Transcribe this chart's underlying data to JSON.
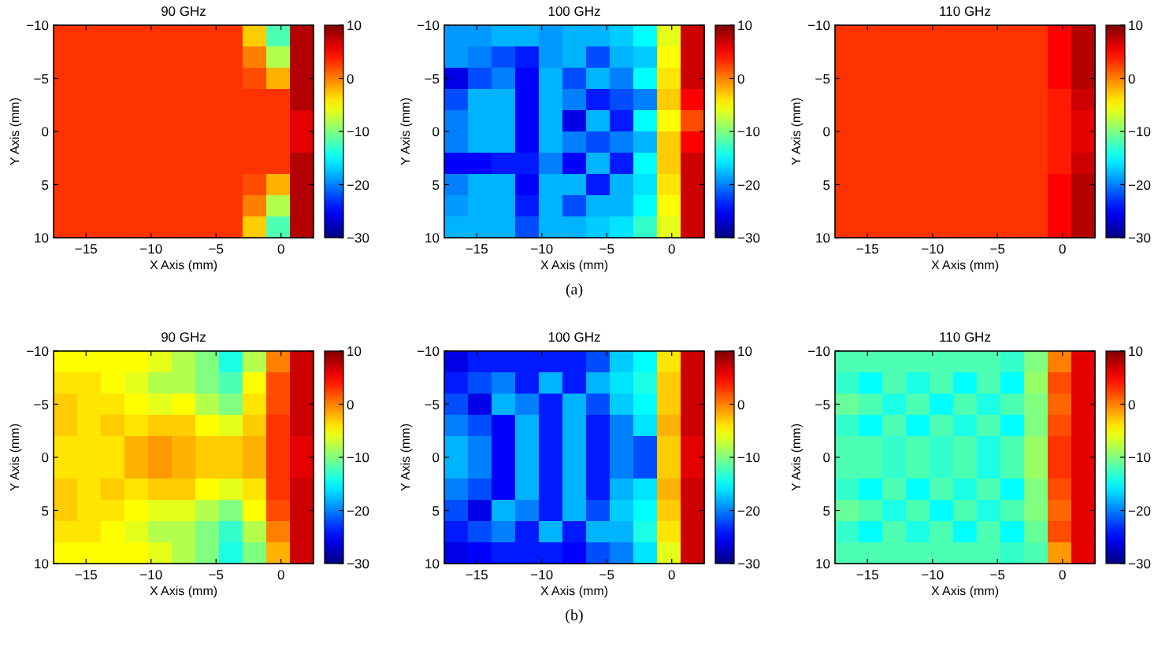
{
  "chart_data": [
    {
      "type": "heatmap",
      "title": "90 GHz",
      "xlabel": "X Axis (mm)",
      "ylabel": "Y Axis (mm)",
      "xlim": [
        -17.5,
        2.5
      ],
      "xticks": [
        -15,
        -10,
        -5,
        0
      ],
      "ylim": [
        10,
        -10
      ],
      "yticks": [
        -10,
        -5,
        0,
        5,
        10
      ],
      "clim": [
        -30,
        10
      ],
      "cticks": [
        -30,
        -20,
        -10,
        0,
        10
      ],
      "cells": [
        [
          3,
          3,
          3,
          3,
          3,
          3,
          3,
          3,
          -3,
          -12,
          8
        ],
        [
          3,
          3,
          3,
          3,
          3,
          3,
          3,
          3,
          0,
          -8,
          8
        ],
        [
          3,
          3,
          3,
          3,
          3,
          3,
          3,
          3,
          2,
          -2,
          8
        ],
        [
          3,
          3,
          3,
          3,
          3,
          3,
          3,
          3,
          3,
          3,
          8
        ],
        [
          3,
          3,
          3,
          3,
          3,
          3,
          3,
          3,
          3,
          3,
          6
        ],
        [
          3,
          3,
          3,
          3,
          3,
          3,
          3,
          3,
          3,
          3,
          6
        ],
        [
          3,
          3,
          3,
          3,
          3,
          3,
          3,
          3,
          3,
          3,
          8
        ],
        [
          3,
          3,
          3,
          3,
          3,
          3,
          3,
          3,
          2,
          -2,
          8
        ],
        [
          3,
          3,
          3,
          3,
          3,
          3,
          3,
          3,
          0,
          -8,
          8
        ],
        [
          3,
          3,
          3,
          3,
          3,
          3,
          3,
          3,
          -3,
          -12,
          8
        ]
      ]
    },
    {
      "type": "heatmap",
      "title": "100 GHz",
      "xlabel": "X Axis (mm)",
      "ylabel": "Y Axis (mm)",
      "xlim": [
        -17.5,
        2.5
      ],
      "xticks": [
        -15,
        -10,
        -5,
        0
      ],
      "ylim": [
        10,
        -10
      ],
      "yticks": [
        -10,
        -5,
        0,
        5,
        10
      ],
      "clim": [
        -30,
        10
      ],
      "cticks": [
        -30,
        -20,
        -10,
        0,
        10
      ],
      "annotations": [
        "(a)"
      ],
      "cells": [
        [
          -19,
          -19,
          -18,
          -18,
          -19,
          -18,
          -18,
          -17,
          -15,
          -6,
          7
        ],
        [
          -19,
          -20,
          -22,
          -24,
          -19,
          -18,
          -22,
          -18,
          -17,
          -5,
          7
        ],
        [
          -26,
          -22,
          -20,
          -25,
          -18,
          -22,
          -18,
          -20,
          -15,
          -4,
          7
        ],
        [
          -22,
          -18,
          -18,
          -25,
          -18,
          -20,
          -24,
          -22,
          -20,
          -3,
          5
        ],
        [
          -20,
          -18,
          -18,
          -25,
          -18,
          -26,
          -18,
          -24,
          -15,
          -5,
          2
        ],
        [
          -20,
          -18,
          -18,
          -25,
          -18,
          -20,
          -22,
          -20,
          -18,
          -3,
          5
        ],
        [
          -25,
          -25,
          -24,
          -24,
          -20,
          -25,
          -18,
          -24,
          -15,
          -3,
          7
        ],
        [
          -20,
          -18,
          -18,
          -25,
          -18,
          -18,
          -24,
          -18,
          -16,
          -4,
          7
        ],
        [
          -19,
          -18,
          -18,
          -24,
          -18,
          -22,
          -18,
          -18,
          -15,
          -5,
          7
        ],
        [
          -18,
          -18,
          -18,
          -22,
          -18,
          -18,
          -17,
          -16,
          -13,
          -6,
          7
        ]
      ]
    },
    {
      "type": "heatmap",
      "title": "110 GHz",
      "xlabel": "X Axis (mm)",
      "ylabel": "Y Axis (mm)",
      "xlim": [
        -17.5,
        2.5
      ],
      "xticks": [
        -15,
        -10,
        -5,
        0
      ],
      "ylim": [
        10,
        -10
      ],
      "yticks": [
        -10,
        -5,
        0,
        5,
        10
      ],
      "clim": [
        -30,
        10
      ],
      "cticks": [
        -30,
        -20,
        -10,
        0,
        10
      ],
      "cells": [
        [
          3,
          3,
          3,
          3,
          3,
          3,
          3,
          3,
          3,
          5,
          8
        ],
        [
          3,
          3,
          3,
          3,
          3,
          3,
          3,
          3,
          3,
          5,
          8
        ],
        [
          3,
          3,
          3,
          3,
          3,
          3,
          3,
          3,
          3,
          5,
          8
        ],
        [
          3,
          3,
          3,
          3,
          3,
          3,
          3,
          3,
          3,
          4,
          7
        ],
        [
          3,
          3,
          3,
          3,
          3,
          3,
          3,
          3,
          3,
          4,
          6
        ],
        [
          3,
          3,
          3,
          3,
          3,
          3,
          3,
          3,
          3,
          4,
          6
        ],
        [
          3,
          3,
          3,
          3,
          3,
          3,
          3,
          3,
          3,
          4,
          7
        ],
        [
          3,
          3,
          3,
          3,
          3,
          3,
          3,
          3,
          3,
          5,
          8
        ],
        [
          3,
          3,
          3,
          3,
          3,
          3,
          3,
          3,
          3,
          5,
          8
        ],
        [
          3,
          3,
          3,
          3,
          3,
          3,
          3,
          3,
          3,
          5,
          8
        ]
      ]
    },
    {
      "type": "heatmap",
      "title": "90 GHz",
      "xlabel": "X Axis (mm)",
      "ylabel": "Y Axis (mm)",
      "xlim": [
        -17.5,
        2.5
      ],
      "xticks": [
        -15,
        -10,
        -5,
        0
      ],
      "ylim": [
        10,
        -10
      ],
      "yticks": [
        -10,
        -5,
        0,
        5,
        10
      ],
      "clim": [
        -30,
        10
      ],
      "cticks": [
        -30,
        -20,
        -10,
        0,
        10
      ],
      "cells": [
        [
          -5,
          -5,
          -5,
          -5,
          -6,
          -8,
          -10,
          -14,
          -8,
          0,
          7
        ],
        [
          -4,
          -4,
          -5,
          -6,
          -8,
          -8,
          -10,
          -12,
          -5,
          2,
          7
        ],
        [
          -3,
          -4,
          -4,
          -5,
          -6,
          -5,
          -8,
          -10,
          -4,
          2,
          7
        ],
        [
          -3,
          -4,
          -3,
          -4,
          -3,
          -3,
          -5,
          -6,
          -3,
          3,
          7
        ],
        [
          -4,
          -4,
          -4,
          -2,
          -1,
          -2,
          -3,
          -3,
          -2,
          3,
          6
        ],
        [
          -4,
          -4,
          -4,
          -2,
          -1,
          -2,
          -3,
          -3,
          -2,
          3,
          6
        ],
        [
          -3,
          -4,
          -3,
          -4,
          -3,
          -3,
          -5,
          -6,
          -4,
          3,
          7
        ],
        [
          -3,
          -4,
          -4,
          -5,
          -6,
          -6,
          -8,
          -10,
          -5,
          2,
          7
        ],
        [
          -4,
          -4,
          -5,
          -6,
          -8,
          -8,
          -10,
          -13,
          -8,
          0,
          7
        ],
        [
          -5,
          -5,
          -5,
          -5,
          -6,
          -8,
          -10,
          -14,
          -10,
          -2,
          7
        ]
      ]
    },
    {
      "type": "heatmap",
      "title": "100 GHz",
      "xlabel": "X Axis (mm)",
      "ylabel": "Y Axis (mm)",
      "xlim": [
        -17.5,
        2.5
      ],
      "xticks": [
        -15,
        -10,
        -5,
        0
      ],
      "ylim": [
        10,
        -10
      ],
      "yticks": [
        -10,
        -5,
        0,
        5,
        10
      ],
      "clim": [
        -30,
        10
      ],
      "cticks": [
        -30,
        -20,
        -10,
        0,
        10
      ],
      "annotations": [
        "(b)"
      ],
      "cells": [
        [
          -26,
          -24,
          -24,
          -24,
          -24,
          -24,
          -22,
          -17,
          -15,
          -4,
          7
        ],
        [
          -24,
          -22,
          -20,
          -24,
          -18,
          -24,
          -18,
          -16,
          -14,
          -3,
          7
        ],
        [
          -22,
          -26,
          -18,
          -20,
          -24,
          -18,
          -22,
          -17,
          -15,
          -3,
          7
        ],
        [
          -20,
          -22,
          -25,
          -18,
          -24,
          -18,
          -24,
          -20,
          -16,
          -2,
          7
        ],
        [
          -18,
          -20,
          -25,
          -18,
          -24,
          -18,
          -24,
          -20,
          -22,
          -3,
          6
        ],
        [
          -18,
          -20,
          -25,
          -18,
          -24,
          -18,
          -24,
          -20,
          -22,
          -3,
          6
        ],
        [
          -20,
          -22,
          -25,
          -18,
          -24,
          -18,
          -24,
          -18,
          -16,
          -2,
          7
        ],
        [
          -22,
          -26,
          -18,
          -20,
          -24,
          -18,
          -22,
          -17,
          -15,
          -3,
          7
        ],
        [
          -24,
          -22,
          -20,
          -24,
          -18,
          -24,
          -18,
          -18,
          -14,
          -4,
          7
        ],
        [
          -26,
          -25,
          -24,
          -24,
          -24,
          -25,
          -22,
          -20,
          -16,
          -6,
          7
        ]
      ]
    },
    {
      "type": "heatmap",
      "title": "110 GHz",
      "xlabel": "X Axis (mm)",
      "ylabel": "Y Axis (mm)",
      "xlim": [
        -17.5,
        2.5
      ],
      "xticks": [
        -15,
        -10,
        -5,
        0
      ],
      "ylim": [
        10,
        -10
      ],
      "yticks": [
        -10,
        -5,
        0,
        5,
        10
      ],
      "clim": [
        -30,
        10
      ],
      "cticks": [
        -30,
        -20,
        -10,
        0,
        10
      ],
      "cells": [
        [
          -12,
          -12,
          -12,
          -12,
          -12,
          -12,
          -12,
          -13,
          -10,
          0,
          6
        ],
        [
          -13,
          -15,
          -12,
          -14,
          -12,
          -15,
          -12,
          -15,
          -9,
          2,
          6
        ],
        [
          -11,
          -12,
          -14,
          -12,
          -15,
          -12,
          -14,
          -12,
          -10,
          1,
          6
        ],
        [
          -13,
          -15,
          -12,
          -15,
          -12,
          -14,
          -12,
          -15,
          -10,
          2,
          6
        ],
        [
          -12,
          -12,
          -13,
          -12,
          -13,
          -12,
          -14,
          -12,
          -9,
          3,
          6
        ],
        [
          -12,
          -12,
          -13,
          -12,
          -13,
          -12,
          -14,
          -12,
          -9,
          3,
          6
        ],
        [
          -13,
          -15,
          -12,
          -15,
          -12,
          -14,
          -12,
          -15,
          -10,
          2,
          6
        ],
        [
          -11,
          -12,
          -14,
          -12,
          -15,
          -12,
          -14,
          -12,
          -10,
          1,
          6
        ],
        [
          -13,
          -15,
          -12,
          -14,
          -12,
          -15,
          -12,
          -15,
          -11,
          2,
          6
        ],
        [
          -12,
          -12,
          -12,
          -12,
          -12,
          -12,
          -12,
          -13,
          -12,
          -1,
          6
        ]
      ]
    }
  ]
}
